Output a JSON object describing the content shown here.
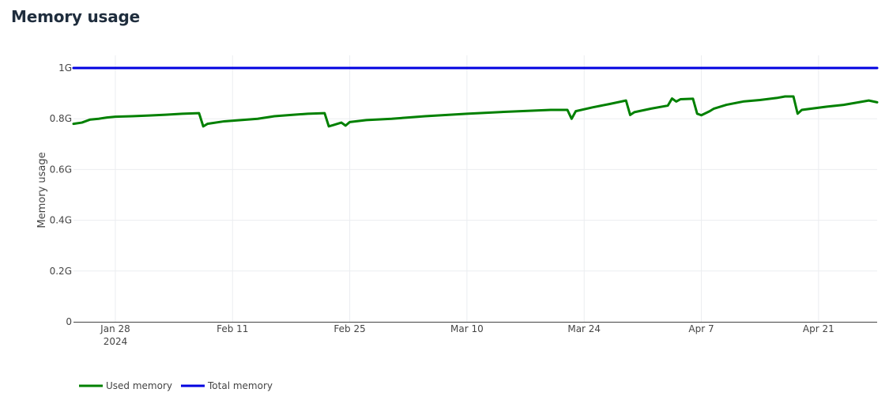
{
  "page": {
    "title": "Memory usage"
  },
  "chart_data": {
    "type": "line",
    "title": "",
    "xlabel": "",
    "ylabel": "Memory usage",
    "xlim": [
      "2024-01-23",
      "2024-04-28"
    ],
    "ylim": [
      0,
      1.05
    ],
    "y_unit_suffix": "G",
    "grid": true,
    "legend_position": "bottom-left",
    "x_ticks": [
      {
        "date": "2024-01-28",
        "label": "Jan 28",
        "sublabel": "2024"
      },
      {
        "date": "2024-02-11",
        "label": "Feb 11",
        "sublabel": ""
      },
      {
        "date": "2024-02-25",
        "label": "Feb 25",
        "sublabel": ""
      },
      {
        "date": "2024-03-10",
        "label": "Mar 10",
        "sublabel": ""
      },
      {
        "date": "2024-03-24",
        "label": "Mar 24",
        "sublabel": ""
      },
      {
        "date": "2024-04-07",
        "label": "Apr 7",
        "sublabel": ""
      },
      {
        "date": "2024-04-21",
        "label": "Apr 21",
        "sublabel": ""
      }
    ],
    "y_ticks": [
      {
        "value": 0,
        "label": "0"
      },
      {
        "value": 0.2,
        "label": "0.2G"
      },
      {
        "value": 0.4,
        "label": "0.4G"
      },
      {
        "value": 0.6,
        "label": "0.6G"
      },
      {
        "value": 0.8,
        "label": "0.8G"
      },
      {
        "value": 1.0,
        "label": "1G"
      }
    ],
    "series": [
      {
        "name": "Used memory",
        "color": "#008000",
        "x": [
          "2024-01-23",
          "2024-01-24",
          "2024-01-25",
          "2024-01-26",
          "2024-01-27",
          "2024-01-28",
          "2024-01-30",
          "2024-02-01",
          "2024-02-03",
          "2024-02-05",
          "2024-02-07",
          "2024-02-07T12:00",
          "2024-02-08",
          "2024-02-10",
          "2024-02-12",
          "2024-02-14",
          "2024-02-16",
          "2024-02-18",
          "2024-02-20",
          "2024-02-22",
          "2024-02-22T12:00",
          "2024-02-23",
          "2024-02-24",
          "2024-02-24T12:00",
          "2024-02-25",
          "2024-02-27",
          "2024-03-01",
          "2024-03-05",
          "2024-03-10",
          "2024-03-15",
          "2024-03-20",
          "2024-03-22",
          "2024-03-22T12:00",
          "2024-03-23",
          "2024-03-25",
          "2024-03-27",
          "2024-03-29",
          "2024-03-29T12:00",
          "2024-03-30",
          "2024-04-01",
          "2024-04-03",
          "2024-04-03T12:00",
          "2024-04-04",
          "2024-04-04T12:00",
          "2024-04-06",
          "2024-04-06T12:00",
          "2024-04-07",
          "2024-04-08",
          "2024-04-08T12:00",
          "2024-04-10",
          "2024-04-12",
          "2024-04-14",
          "2024-04-16",
          "2024-04-17",
          "2024-04-18",
          "2024-04-18T12:00",
          "2024-04-19",
          "2024-04-22",
          "2024-04-24",
          "2024-04-27",
          "2024-04-28"
        ],
        "values": [
          0.78,
          0.785,
          0.797,
          0.8,
          0.805,
          0.808,
          0.81,
          0.813,
          0.816,
          0.82,
          0.822,
          0.77,
          0.78,
          0.79,
          0.795,
          0.8,
          0.81,
          0.815,
          0.82,
          0.822,
          0.77,
          0.775,
          0.785,
          0.773,
          0.787,
          0.795,
          0.8,
          0.81,
          0.82,
          0.828,
          0.835,
          0.835,
          0.8,
          0.83,
          0.845,
          0.858,
          0.872,
          0.815,
          0.826,
          0.84,
          0.852,
          0.88,
          0.868,
          0.877,
          0.879,
          0.82,
          0.814,
          0.83,
          0.84,
          0.855,
          0.868,
          0.874,
          0.882,
          0.888,
          0.888,
          0.82,
          0.835,
          0.848,
          0.855,
          0.872,
          0.865
        ]
      },
      {
        "name": "Total memory",
        "color": "#0000e0",
        "x": [
          "2024-01-23",
          "2024-04-28"
        ],
        "values": [
          1.0,
          1.0
        ]
      }
    ]
  }
}
